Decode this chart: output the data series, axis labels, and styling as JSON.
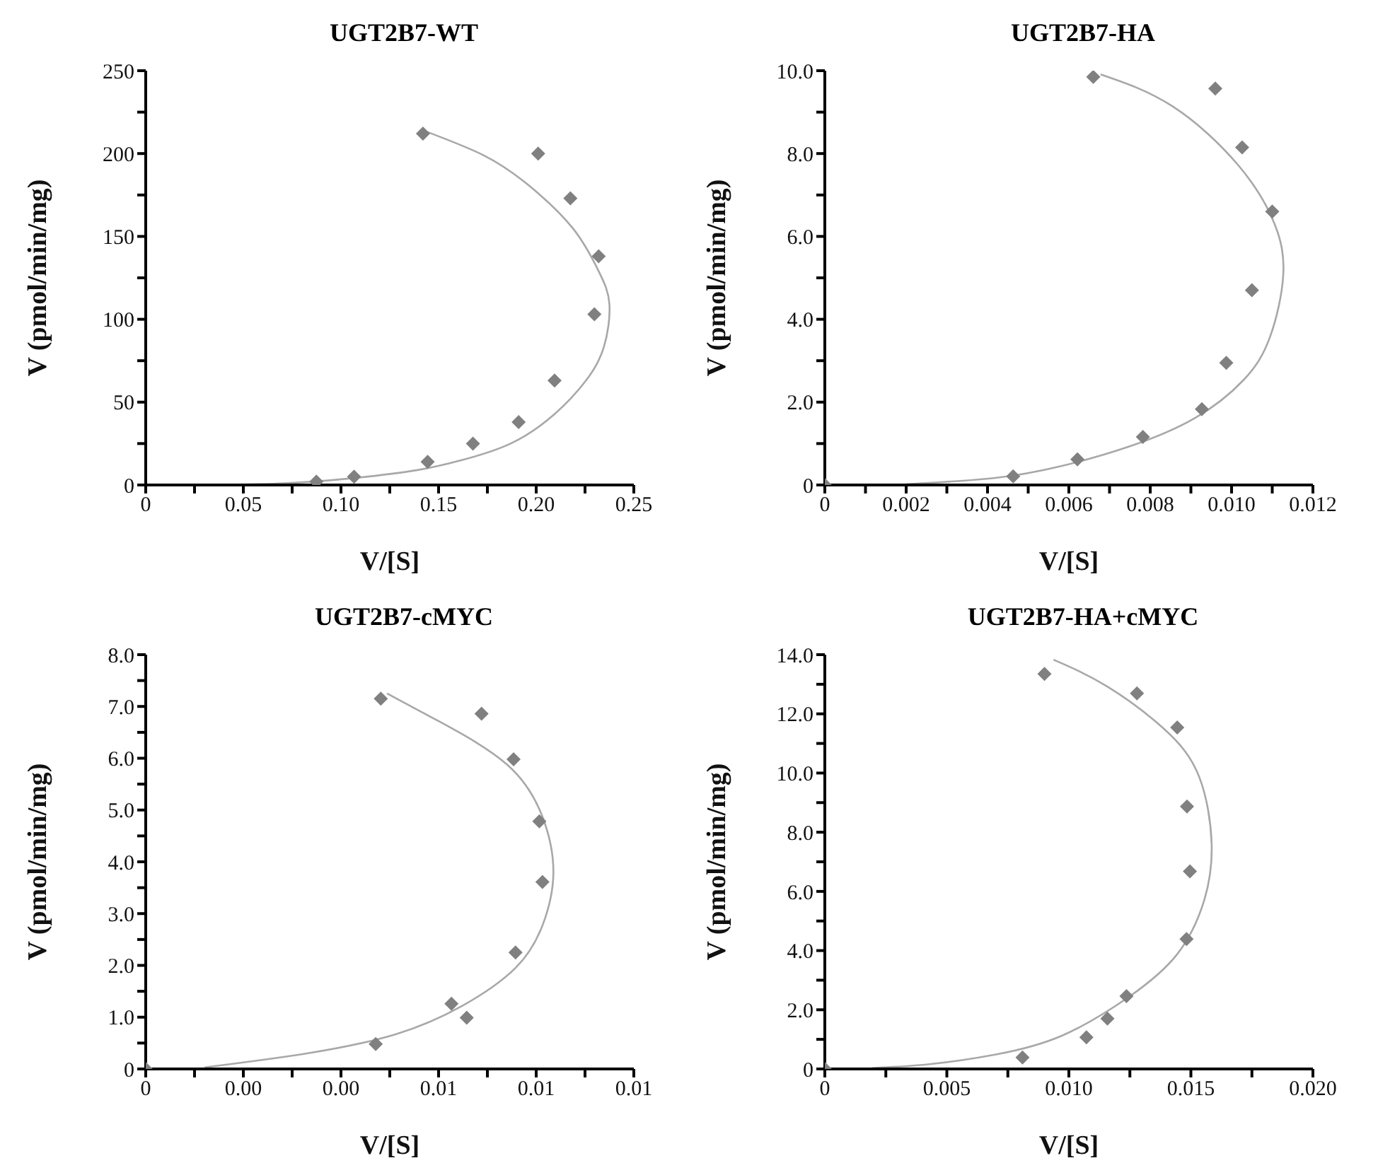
{
  "chart_data": [
    {
      "type": "scatter",
      "title": "UGT2B7-WT",
      "xlabel": "V/[S]",
      "ylabel": "V (pmol/min/mg)",
      "xlim": [
        0,
        0.25
      ],
      "ylim": [
        0,
        250
      ],
      "xticks": [
        0,
        {
          "value": 0.025,
          "label": null
        },
        {
          "value": 0.05,
          "label": "0.05"
        },
        {
          "value": 0.075,
          "label": null
        },
        {
          "value": 0.1,
          "label": "0.10"
        },
        {
          "value": 0.125,
          "label": null
        },
        {
          "value": 0.15,
          "label": "0.15"
        },
        {
          "value": 0.175,
          "label": null
        },
        {
          "value": 0.2,
          "label": "0.20"
        },
        {
          "value": 0.225,
          "label": null
        },
        {
          "value": 0.25,
          "label": "0.25"
        }
      ],
      "yticks": [
        0,
        {
          "value": 25,
          "label": null
        },
        50,
        {
          "value": 75,
          "label": null
        },
        100,
        {
          "value": 125,
          "label": null
        },
        150,
        {
          "value": 175,
          "label": null
        },
        200,
        {
          "value": 225,
          "label": null
        },
        250
      ],
      "grid": false,
      "legend": false,
      "series": [
        {
          "marker": "diamond",
          "color": "#808080",
          "x": [
            0.142,
            0.201,
            0.2175,
            0.232,
            0.2298,
            0.2094,
            0.191,
            0.1676,
            0.1444,
            0.1067,
            0.0874
          ],
          "values": [
            212,
            200,
            173,
            138,
            103,
            63,
            38,
            25,
            14,
            5,
            2
          ]
        },
        {
          "type": "line",
          "marker": "none",
          "line_style": "solid",
          "color": "#a8a8a8",
          "x": [
            0.142,
            0.173,
            0.196,
            0.2187,
            0.232,
            0.2375,
            0.2346,
            0.2255,
            0.2096,
            0.1869,
            0.1619,
            0.1392,
            0.1051,
            0.0711,
            0.037
          ],
          "values": [
            214,
            199,
            181,
            155,
            129,
            109,
            83,
            63,
            43,
            25,
            15,
            9,
            4,
            1,
            0
          ]
        }
      ]
    },
    {
      "type": "scatter",
      "title": "UGT2B7-HA",
      "xlabel": "V/[S]",
      "ylabel": "V (pmol/min/mg)",
      "xlim": [
        0,
        0.012
      ],
      "ylim": [
        0,
        10
      ],
      "xticks": [
        0,
        {
          "value": 0.001,
          "label": null
        },
        0.002,
        {
          "value": 0.003,
          "label": null
        },
        0.004,
        {
          "value": 0.005,
          "label": null
        },
        0.006,
        {
          "value": 0.007,
          "label": null
        },
        0.008,
        {
          "value": 0.009,
          "label": null
        },
        {
          "value": 0.01,
          "label": "0.010"
        },
        {
          "value": 0.011,
          "label": null
        },
        0.012
      ],
      "yticks": [
        0,
        {
          "value": 1,
          "label": null
        },
        {
          "value": 2,
          "label": "2.0"
        },
        {
          "value": 3,
          "label": null
        },
        {
          "value": 4,
          "label": "4.0"
        },
        {
          "value": 5,
          "label": null
        },
        {
          "value": 6,
          "label": "6.0"
        },
        {
          "value": 7,
          "label": null
        },
        {
          "value": 8,
          "label": "8.0"
        },
        {
          "value": 9,
          "label": null
        },
        {
          "value": 10,
          "label": "10.0"
        }
      ],
      "grid": false,
      "legend": false,
      "series": [
        {
          "marker": "diamond",
          "color": "#808080",
          "x": [
            0.0066,
            0.0096,
            0.01026,
            0.011,
            0.0105,
            0.00987,
            0.00927,
            0.00782,
            0.00621,
            0.00463,
            0
          ],
          "values": [
            9.85,
            9.57,
            8.15,
            6.6,
            4.7,
            2.95,
            1.83,
            1.16,
            0.62,
            0.21,
            0
          ]
        },
        {
          "type": "line",
          "marker": "none",
          "line_style": "solid",
          "color": "#a8a8a8",
          "x": [
            0.00678,
            0.00855,
            0.01018,
            0.01105,
            0.01127,
            0.01094,
            0.01029,
            0.00909,
            0.00746,
            0.00583,
            0.00419,
            0.00201
          ],
          "values": [
            9.91,
            9.14,
            7.7,
            6.32,
            5.06,
            3.56,
            2.53,
            1.61,
            0.92,
            0.46,
            0.17,
            0.02
          ]
        }
      ]
    },
    {
      "type": "scatter",
      "title": "UGT2B7-cMYC",
      "xlabel": "V/[S]",
      "ylabel": "V (pmol/min/mg)",
      "xlim": [
        0,
        0.0125
      ],
      "ylim": [
        0,
        8
      ],
      "xticks": [
        0,
        {
          "value": 0.00125,
          "label": null
        },
        {
          "value": 0.0025,
          "label": "0.00"
        },
        {
          "value": 0.00375,
          "label": null
        },
        {
          "value": 0.005,
          "label": "0.00"
        },
        {
          "value": 0.00625,
          "label": null
        },
        {
          "value": 0.0075,
          "label": "0.01"
        },
        {
          "value": 0.00875,
          "label": null
        },
        {
          "value": 0.01,
          "label": "0.01"
        },
        {
          "value": 0.01125,
          "label": null
        },
        {
          "value": 0.0125,
          "label": "0.01"
        }
      ],
      "yticks": [
        0,
        {
          "value": 0.5,
          "label": null
        },
        {
          "value": 1,
          "label": "1.0"
        },
        {
          "value": 1.5,
          "label": null
        },
        {
          "value": 2,
          "label": "2.0"
        },
        {
          "value": 2.5,
          "label": null
        },
        {
          "value": 3,
          "label": "3.0"
        },
        {
          "value": 3.5,
          "label": null
        },
        {
          "value": 4,
          "label": "4.0"
        },
        {
          "value": 4.5,
          "label": null
        },
        {
          "value": 5,
          "label": "5.0"
        },
        {
          "value": 5.5,
          "label": null
        },
        {
          "value": 6,
          "label": "6.0"
        },
        {
          "value": 6.5,
          "label": null
        },
        {
          "value": 7,
          "label": "7.0"
        },
        {
          "value": 7.5,
          "label": null
        },
        {
          "value": 8,
          "label": "8.0"
        }
      ],
      "grid": false,
      "legend": false,
      "series": [
        {
          "marker": "diamond",
          "color": "#808080",
          "x": [
            0.00602,
            0.0086,
            0.00942,
            0.01008,
            0.01016,
            0.00947,
            0.00783,
            0.00822,
            0.00589,
            0
          ],
          "values": [
            7.15,
            6.86,
            5.98,
            4.78,
            3.61,
            2.25,
            1.26,
            0.99,
            0.48,
            0
          ]
        },
        {
          "type": "line",
          "marker": "none",
          "line_style": "solid",
          "color": "#a8a8a8",
          "x": [
            0.00618,
            0.00754,
            0.00925,
            0.01016,
            0.01044,
            0.01016,
            0.00947,
            0.00811,
            0.0064,
            0.00413,
            0.00151
          ],
          "values": [
            7.25,
            6.7,
            5.88,
            4.87,
            3.78,
            2.77,
            1.95,
            1.22,
            0.67,
            0.3,
            0.03
          ]
        }
      ]
    },
    {
      "type": "scatter",
      "title": "UGT2B7-HA+cMYC",
      "xlabel": "V/[S]",
      "ylabel": "V (pmol/min/mg)",
      "xlim": [
        0,
        0.02
      ],
      "ylim": [
        0,
        14
      ],
      "xticks": [
        0,
        {
          "value": 0.0025,
          "label": null
        },
        0.005,
        {
          "value": 0.0075,
          "label": null
        },
        {
          "value": 0.01,
          "label": "0.010"
        },
        {
          "value": 0.0125,
          "label": null
        },
        0.015,
        {
          "value": 0.0175,
          "label": null
        },
        {
          "value": 0.02,
          "label": "0.020"
        }
      ],
      "yticks": [
        0,
        {
          "value": 1,
          "label": null
        },
        {
          "value": 2,
          "label": "2.0"
        },
        {
          "value": 3,
          "label": null
        },
        {
          "value": 4,
          "label": "4.0"
        },
        {
          "value": 5,
          "label": null
        },
        {
          "value": 6,
          "label": "6.0"
        },
        {
          "value": 7,
          "label": null
        },
        {
          "value": 8,
          "label": "8.0"
        },
        {
          "value": 9,
          "label": null
        },
        {
          "value": 10,
          "label": "10.0"
        },
        {
          "value": 11,
          "label": null
        },
        {
          "value": 12,
          "label": "12.0"
        },
        {
          "value": 13,
          "label": null
        },
        {
          "value": 14,
          "label": "14.0"
        }
      ],
      "grid": false,
      "legend": false,
      "series": [
        {
          "marker": "diamond",
          "color": "#808080",
          "x": [
            0.009,
            0.01279,
            0.01444,
            0.01484,
            0.01496,
            0.01482,
            0.01236,
            0.01158,
            0.01072,
            0.0081,
            0
          ],
          "values": [
            13.35,
            12.69,
            11.54,
            8.87,
            6.68,
            4.39,
            2.46,
            1.7,
            1.07,
            0.39,
            0
          ]
        },
        {
          "type": "line",
          "marker": "none",
          "line_style": "solid",
          "color": "#a8a8a8",
          "x": [
            0.00937,
            0.01154,
            0.0139,
            0.01534,
            0.01585,
            0.01553,
            0.01444,
            0.01245,
            0.00973,
            0.00701,
            0.00429,
            0.00194
          ],
          "values": [
            13.83,
            12.94,
            11.49,
            9.87,
            7.61,
            5.66,
            3.88,
            2.43,
            1.13,
            0.49,
            0.16,
            0.03
          ]
        }
      ]
    }
  ]
}
